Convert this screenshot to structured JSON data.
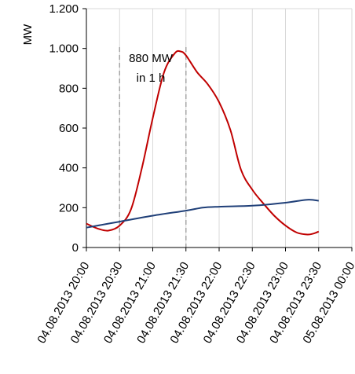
{
  "chart_data": {
    "type": "line",
    "ylabel": "MW",
    "ylim": [
      0,
      1200
    ],
    "y_ticks": [
      0,
      200,
      400,
      600,
      800,
      1000,
      1200
    ],
    "y_tick_labels": [
      "0",
      "200",
      "400",
      "600",
      "800",
      "1.000",
      "1.200"
    ],
    "x_tick_labels": [
      "04.08.2013 20:00",
      "04.08.2013 20:30",
      "04.08.2013 21:00",
      "04.08.2013 21:30",
      "04.08.2013 22:00",
      "04.08.2013 22:30",
      "04.08.2013 23:00",
      "04.08.2013 23:30",
      "05.08.2013 00:00"
    ],
    "x_unit": "hours after 04.08.2013 20:00",
    "grid": "vertical",
    "series": [
      {
        "color": "#c00000",
        "points": [
          [
            0.0,
            120
          ],
          [
            0.17,
            95
          ],
          [
            0.33,
            85
          ],
          [
            0.5,
            110
          ],
          [
            0.67,
            190
          ],
          [
            0.83,
            390
          ],
          [
            1.0,
            650
          ],
          [
            1.17,
            880
          ],
          [
            1.33,
            975
          ],
          [
            1.42,
            985
          ],
          [
            1.5,
            965
          ],
          [
            1.67,
            880
          ],
          [
            1.83,
            820
          ],
          [
            2.0,
            730
          ],
          [
            2.17,
            590
          ],
          [
            2.33,
            390
          ],
          [
            2.5,
            290
          ],
          [
            2.67,
            220
          ],
          [
            2.83,
            160
          ],
          [
            3.0,
            110
          ],
          [
            3.17,
            75
          ],
          [
            3.33,
            65
          ],
          [
            3.42,
            70
          ],
          [
            3.5,
            80
          ]
        ]
      },
      {
        "color": "#1f3f78",
        "points": [
          [
            0.0,
            100
          ],
          [
            0.5,
            130
          ],
          [
            1.0,
            160
          ],
          [
            1.5,
            185
          ],
          [
            1.75,
            200
          ],
          [
            2.0,
            205
          ],
          [
            2.5,
            210
          ],
          [
            3.0,
            225
          ],
          [
            3.33,
            240
          ],
          [
            3.5,
            235
          ]
        ]
      }
    ],
    "markers": [
      {
        "x": 0.5,
        "color": "#a6a6a6",
        "style": "dashed"
      },
      {
        "x": 1.5,
        "color": "#a6a6a6",
        "style": "dashed"
      }
    ],
    "annotation": {
      "line1": "880 MW",
      "line2": "in 1 h"
    }
  }
}
